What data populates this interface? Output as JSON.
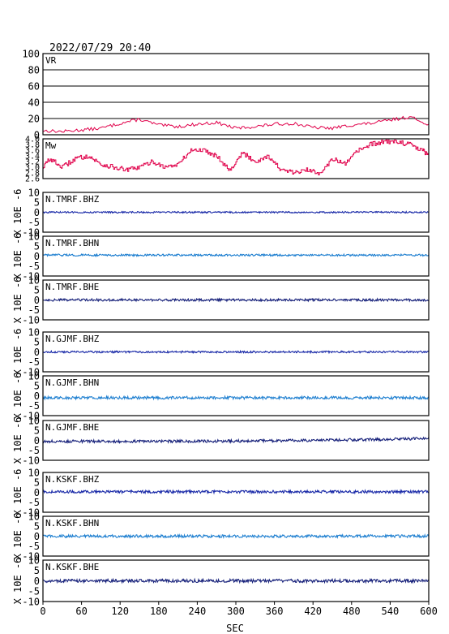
{
  "header": {
    "timestamp": "2022/07/29 20:40"
  },
  "chart_data": {
    "type": "line",
    "xlabel": "SEC",
    "xlim": [
      0,
      600
    ],
    "x_ticks": [
      "0",
      "60",
      "120",
      "180",
      "240",
      "300",
      "360",
      "420",
      "480",
      "540",
      "600"
    ],
    "colors": {
      "vr": "#e0004a",
      "mw": "#e0004a",
      "bhz": "#1a2aa8",
      "bhn": "#1e7fd0",
      "bhe": "#16207a",
      "frame": "#000000",
      "grid": "#000000"
    },
    "panels": [
      {
        "label": "VR",
        "type": "line",
        "ylim": [
          0,
          100
        ],
        "y_ticks": [
          "100",
          "80",
          "60",
          "40",
          "20",
          "0"
        ],
        "ylabel": "",
        "grid": true,
        "trace": "vr",
        "series": [
          {
            "x": 0,
            "y": 5
          },
          {
            "x": 30,
            "y": 4
          },
          {
            "x": 60,
            "y": 6
          },
          {
            "x": 90,
            "y": 8
          },
          {
            "x": 120,
            "y": 14
          },
          {
            "x": 150,
            "y": 19
          },
          {
            "x": 180,
            "y": 12
          },
          {
            "x": 210,
            "y": 10
          },
          {
            "x": 240,
            "y": 13
          },
          {
            "x": 270,
            "y": 15
          },
          {
            "x": 300,
            "y": 8
          },
          {
            "x": 330,
            "y": 10
          },
          {
            "x": 360,
            "y": 13
          },
          {
            "x": 390,
            "y": 14
          },
          {
            "x": 420,
            "y": 9
          },
          {
            "x": 450,
            "y": 8
          },
          {
            "x": 480,
            "y": 12
          },
          {
            "x": 510,
            "y": 14
          },
          {
            "x": 540,
            "y": 18
          },
          {
            "x": 570,
            "y": 22
          },
          {
            "x": 600,
            "y": 13
          }
        ]
      },
      {
        "label": "Mw",
        "type": "line",
        "ylim": [
          2.6,
          4.0
        ],
        "y_ticks": [
          "4.0",
          "3.8",
          "3.6",
          "3.4",
          "3.2",
          "3.0",
          "2.8",
          "2.6"
        ],
        "ylabel": "",
        "trace": "mw",
        "series": [
          {
            "x": 0,
            "y": 3.0
          },
          {
            "x": 10,
            "y": 3.3
          },
          {
            "x": 30,
            "y": 3.0
          },
          {
            "x": 50,
            "y": 3.3
          },
          {
            "x": 70,
            "y": 3.4
          },
          {
            "x": 90,
            "y": 3.1
          },
          {
            "x": 110,
            "y": 3.0
          },
          {
            "x": 130,
            "y": 2.9
          },
          {
            "x": 150,
            "y": 3.0
          },
          {
            "x": 170,
            "y": 3.2
          },
          {
            "x": 190,
            "y": 3.0
          },
          {
            "x": 210,
            "y": 3.1
          },
          {
            "x": 230,
            "y": 3.6
          },
          {
            "x": 250,
            "y": 3.6
          },
          {
            "x": 270,
            "y": 3.4
          },
          {
            "x": 290,
            "y": 2.9
          },
          {
            "x": 310,
            "y": 3.5
          },
          {
            "x": 330,
            "y": 3.2
          },
          {
            "x": 350,
            "y": 3.4
          },
          {
            "x": 370,
            "y": 2.9
          },
          {
            "x": 390,
            "y": 2.8
          },
          {
            "x": 410,
            "y": 2.9
          },
          {
            "x": 430,
            "y": 2.8
          },
          {
            "x": 450,
            "y": 3.3
          },
          {
            "x": 470,
            "y": 3.1
          },
          {
            "x": 490,
            "y": 3.6
          },
          {
            "x": 510,
            "y": 3.8
          },
          {
            "x": 530,
            "y": 3.9
          },
          {
            "x": 550,
            "y": 3.9
          },
          {
            "x": 570,
            "y": 3.8
          },
          {
            "x": 590,
            "y": 3.6
          },
          {
            "x": 600,
            "y": 3.4
          }
        ]
      },
      {
        "label": "N.TMRF.BHZ",
        "type": "line",
        "ylim": [
          -10,
          10
        ],
        "y_ticks": [
          "10",
          "5",
          "0",
          "-5",
          "-10"
        ],
        "ylabel": "X 10E -6",
        "trace": "bhz",
        "baseline": 0,
        "noise": 0.4,
        "drift": 0
      },
      {
        "label": "N.TMRF.BHN",
        "type": "line",
        "ylim": [
          -10,
          10
        ],
        "y_ticks": [
          "10",
          "5",
          "0",
          "-5",
          "-10"
        ],
        "ylabel": "X 10E -6",
        "trace": "bhn",
        "baseline": 0.5,
        "noise": 0.5,
        "drift": 0
      },
      {
        "label": "N.TMRF.BHE",
        "type": "line",
        "ylim": [
          -10,
          10
        ],
        "y_ticks": [
          "10",
          "5",
          "0",
          "-5",
          "-10"
        ],
        "ylabel": "X 10E -6",
        "trace": "bhe",
        "baseline": 0,
        "noise": 0.6,
        "drift": 0
      },
      {
        "label": "N.GJMF.BHZ",
        "type": "line",
        "ylim": [
          -10,
          10
        ],
        "y_ticks": [
          "10",
          "5",
          "0",
          "-5",
          "-10"
        ],
        "ylabel": "X 10E -6",
        "trace": "bhz",
        "baseline": 0,
        "noise": 0.5,
        "drift": 0
      },
      {
        "label": "N.GJMF.BHN",
        "type": "line",
        "ylim": [
          -10,
          10
        ],
        "y_ticks": [
          "10",
          "5",
          "0",
          "-5",
          "-10"
        ],
        "ylabel": "X 10E -6",
        "trace": "bhn",
        "baseline": -1,
        "noise": 0.7,
        "drift": 0
      },
      {
        "label": "N.GJMF.BHE",
        "type": "line",
        "ylim": [
          -10,
          10
        ],
        "y_ticks": [
          "10",
          "5",
          "0",
          "-5",
          "-10"
        ],
        "ylabel": "X 10E -6",
        "trace": "bhe",
        "baseline": -0.5,
        "noise": 0.7,
        "drift": 1.5
      },
      {
        "label": "N.KSKF.BHZ",
        "type": "line",
        "ylim": [
          -10,
          10
        ],
        "y_ticks": [
          "10",
          "5",
          "0",
          "-5",
          "-10"
        ],
        "ylabel": "X 10E -6",
        "trace": "bhz",
        "baseline": 0.3,
        "noise": 0.7,
        "drift": 0
      },
      {
        "label": "N.KSKF.BHN",
        "type": "line",
        "ylim": [
          -10,
          10
        ],
        "y_ticks": [
          "10",
          "5",
          "0",
          "-5",
          "-10"
        ],
        "ylabel": "X 10E -6",
        "trace": "bhn",
        "baseline": 0,
        "noise": 0.7,
        "drift": 0
      },
      {
        "label": "N.KSKF.BHE",
        "type": "line",
        "ylim": [
          -10,
          10
        ],
        "y_ticks": [
          "10",
          "5",
          "0",
          "-5",
          "-10"
        ],
        "ylabel": "X 10E -6",
        "trace": "bhe",
        "baseline": 0,
        "noise": 0.8,
        "drift": 0
      }
    ]
  }
}
